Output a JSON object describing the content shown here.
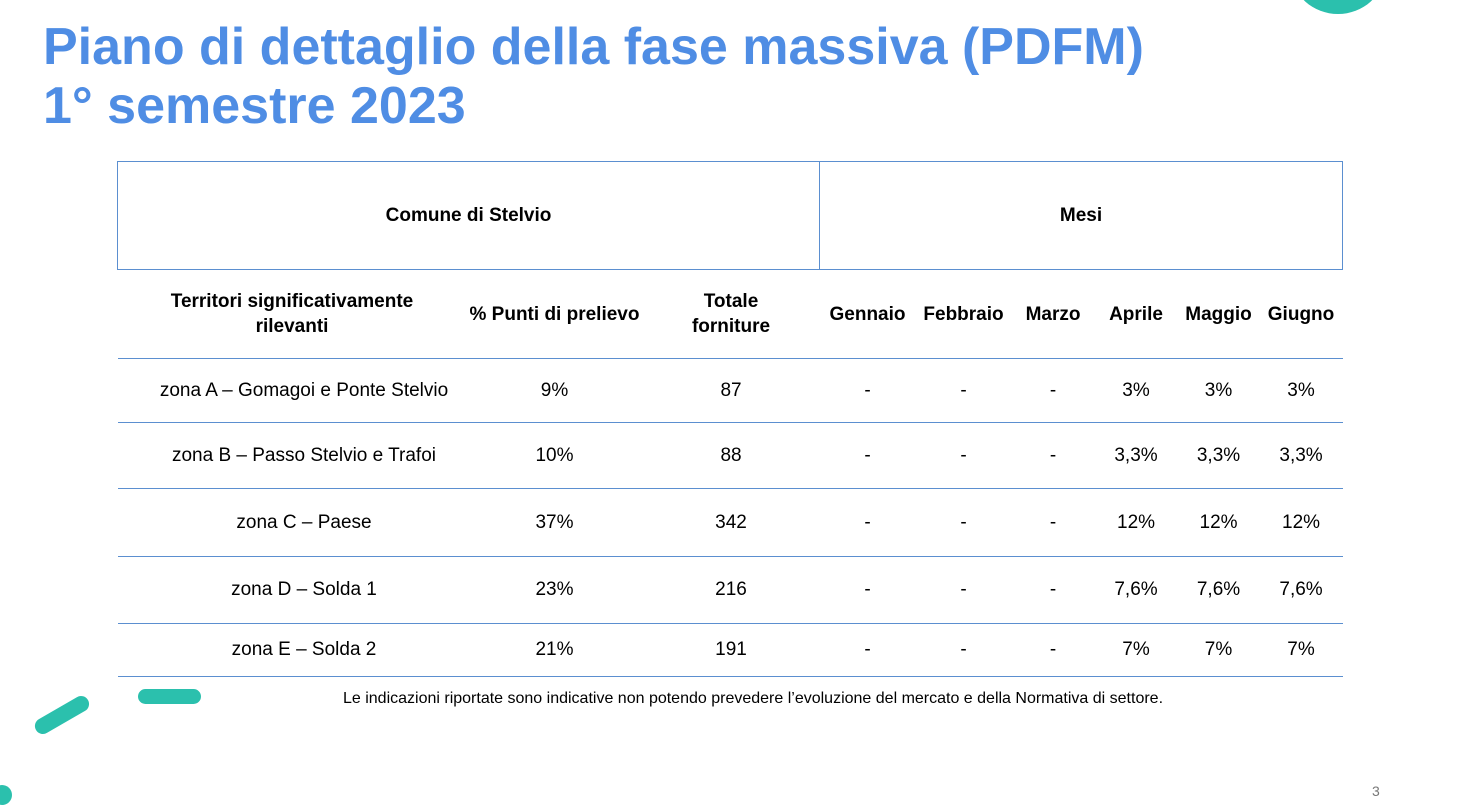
{
  "title": {
    "line1": "Piano di dettaglio della fase massiva (PDFM)",
    "line2": "1° semestre 2023"
  },
  "table": {
    "group_headers": {
      "left": "Comune di Stelvio",
      "right": "Mesi"
    },
    "columns": {
      "territori_line1": "Territori significativamente",
      "territori_line2": "rilevanti",
      "punti": "% Punti di prelievo",
      "totale_line1": "Totale",
      "totale_line2": "forniture",
      "months": [
        "Gennaio",
        "Febbraio",
        "Marzo",
        "Aprile",
        "Maggio",
        "Giugno"
      ]
    },
    "rows": [
      {
        "zona": "zona A – Gomagoi e Ponte Stelvio",
        "punti": "9%",
        "totale": "87",
        "months": [
          "-",
          "-",
          "-",
          "3%",
          "3%",
          "3%"
        ]
      },
      {
        "zona": "zona B – Passo Stelvio e Trafoi",
        "punti": "10%",
        "totale": "88",
        "months": [
          "-",
          "-",
          "-",
          "3,3%",
          "3,3%",
          "3,3%"
        ]
      },
      {
        "zona": "zona C – Paese",
        "punti": "37%",
        "totale": "342",
        "months": [
          "-",
          "-",
          "-",
          "12%",
          "12%",
          "12%"
        ]
      },
      {
        "zona": "zona D – Solda 1",
        "punti": "23%",
        "totale": "216",
        "months": [
          "-",
          "-",
          "-",
          "7,6%",
          "7,6%",
          "7,6%"
        ]
      },
      {
        "zona": "zona E – Solda 2",
        "punti": "21%",
        "totale": "191",
        "months": [
          "-",
          "-",
          "-",
          "7%",
          "7%",
          "7%"
        ]
      }
    ]
  },
  "footnote": "Le indicazioni riportate sono indicative non potendo prevedere l’evoluzione del mercato e della Normativa di settore.",
  "page_number": "3",
  "colors": {
    "title": "#4f8de4",
    "border": "#5b8fd0",
    "accent": "#2bc0ad"
  }
}
